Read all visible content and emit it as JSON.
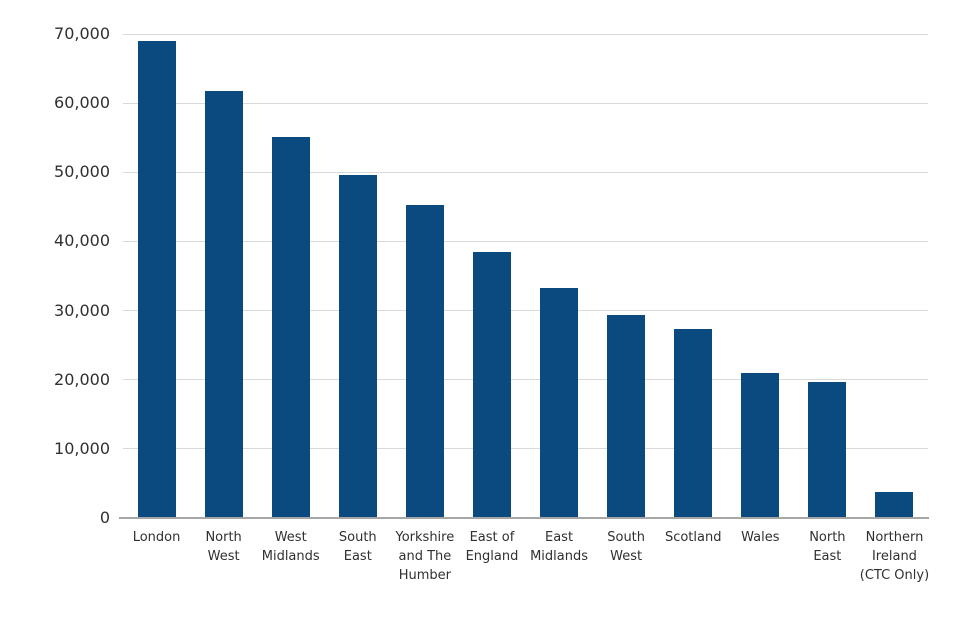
{
  "chart_data": {
    "type": "bar",
    "title": "",
    "xlabel": "",
    "ylabel": "",
    "categories": [
      "London",
      "North West",
      "West Midlands",
      "South East",
      "Yorkshire and The Humber",
      "East of England",
      "East Midlands",
      "South West",
      "Scotland",
      "Wales",
      "North East",
      "Northern Ireland (CTC Only)"
    ],
    "values": [
      69000,
      61700,
      55100,
      49600,
      45300,
      38400,
      33200,
      29400,
      27400,
      21000,
      19600,
      3800
    ],
    "x_tick_lines": [
      [
        "London"
      ],
      [
        "North",
        "West"
      ],
      [
        "West",
        "Midlands"
      ],
      [
        "South",
        "East"
      ],
      [
        "Yorkshire",
        "and The",
        "Humber"
      ],
      [
        "East of",
        "England"
      ],
      [
        "East",
        "Midlands"
      ],
      [
        "South",
        "West"
      ],
      [
        "Scotland"
      ],
      [
        "Wales"
      ],
      [
        "North",
        "East"
      ],
      [
        "Northern",
        "Ireland",
        "(CTC Only)"
      ]
    ],
    "y_ticks": [
      0,
      10000,
      20000,
      30000,
      40000,
      50000,
      60000,
      70000
    ],
    "y_tick_labels": [
      "0",
      "10,000",
      "20,000",
      "30,000",
      "40,000",
      "50,000",
      "60,000",
      "70,000"
    ],
    "ylim": [
      0,
      70000
    ],
    "grid": true,
    "legend_position": "none",
    "colors": {
      "bar": "#0B4A7E",
      "gridline": "#D9D9D9",
      "axis_line": "#A6A6A6",
      "tick_text": "#303030",
      "background": "#FFFFFF"
    }
  }
}
